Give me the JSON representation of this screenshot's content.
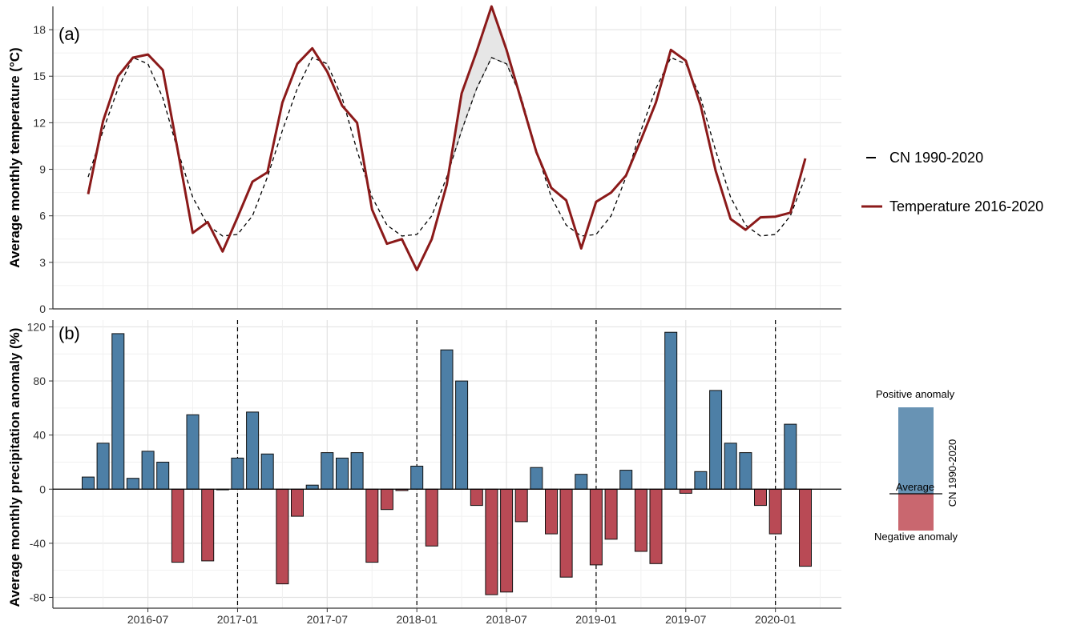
{
  "chart_data": [
    {
      "panel_label": "(a)",
      "type": "line",
      "ylabel": "Average monthly temperature (°C)",
      "ylim": [
        0,
        19.5
      ],
      "yticks": [
        0,
        3,
        6,
        9,
        12,
        15,
        18
      ],
      "xticks": [
        "2016-07",
        "2017-01",
        "2017-07",
        "2018-01",
        "2018-07",
        "2019-01",
        "2019-07",
        "2020-01"
      ],
      "x": [
        "2016-03",
        "2016-04",
        "2016-05",
        "2016-06",
        "2016-07",
        "2016-08",
        "2016-09",
        "2016-10",
        "2016-11",
        "2016-12",
        "2017-01",
        "2017-02",
        "2017-03",
        "2017-04",
        "2017-05",
        "2017-06",
        "2017-07",
        "2017-08",
        "2017-09",
        "2017-10",
        "2017-11",
        "2017-12",
        "2018-01",
        "2018-02",
        "2018-03",
        "2018-04",
        "2018-05",
        "2018-06",
        "2018-07",
        "2018-08",
        "2018-09",
        "2018-10",
        "2018-11",
        "2018-12",
        "2019-01",
        "2019-02",
        "2019-03",
        "2019-04",
        "2019-05",
        "2019-06",
        "2019-07",
        "2019-08",
        "2019-09",
        "2019-10",
        "2019-11",
        "2019-12",
        "2020-01",
        "2020-02",
        "2020-03"
      ],
      "grid": true,
      "series": [
        {
          "name": "CN 1990-2020",
          "style": "dashed",
          "color": "#000000",
          "values": [
            8.5,
            11.5,
            14.2,
            16.2,
            15.8,
            13.6,
            10.2,
            7.2,
            5.4,
            4.7,
            4.8,
            6.0,
            8.5,
            11.5,
            14.2,
            16.2,
            15.8,
            13.6,
            10.2,
            7.2,
            5.4,
            4.7,
            4.8,
            6.0,
            8.5,
            11.5,
            14.2,
            16.2,
            15.8,
            13.6,
            10.2,
            7.2,
            5.4,
            4.7,
            4.8,
            6.0,
            8.5,
            11.5,
            14.2,
            16.2,
            15.8,
            13.6,
            10.2,
            7.2,
            5.4,
            4.7,
            4.8,
            6.0,
            8.5
          ]
        },
        {
          "name": "Temperature 2016-2020",
          "style": "solid",
          "color": "#8b1a1a",
          "values": [
            7.4,
            12.1,
            15.0,
            16.2,
            16.4,
            15.4,
            10.2,
            4.9,
            5.6,
            3.7,
            5.9,
            8.2,
            8.8,
            13.3,
            15.8,
            16.8,
            15.3,
            13.1,
            12.0,
            6.4,
            4.2,
            4.5,
            2.5,
            4.5,
            8.0,
            13.9,
            16.6,
            19.5,
            16.7,
            13.4,
            10.1,
            7.8,
            7.0,
            3.9,
            6.9,
            7.5,
            8.6,
            10.9,
            13.3,
            16.7,
            16.0,
            13.1,
            8.9,
            5.8,
            5.1,
            5.9,
            5.95,
            6.2,
            9.7
          ]
        }
      ]
    },
    {
      "panel_label": "(b)",
      "type": "bar",
      "ylabel": "Average monthly precipitation anomaly (%)",
      "ylim": [
        -88,
        125
      ],
      "yticks": [
        -80,
        -40,
        0,
        40,
        80,
        120
      ],
      "xticks": [
        "2016-07",
        "2017-01",
        "2017-07",
        "2018-01",
        "2018-07",
        "2019-01",
        "2019-07",
        "2020-01"
      ],
      "year_separators": [
        "2017-01",
        "2018-01",
        "2019-01",
        "2020-01"
      ],
      "positive_color": "#4d7fa6",
      "negative_color": "#b94a55",
      "grid": true,
      "x": [
        "2016-03",
        "2016-04",
        "2016-05",
        "2016-06",
        "2016-07",
        "2016-08",
        "2016-09",
        "2016-10",
        "2016-11",
        "2016-12",
        "2017-01",
        "2017-02",
        "2017-03",
        "2017-04",
        "2017-05",
        "2017-06",
        "2017-07",
        "2017-08",
        "2017-09",
        "2017-10",
        "2017-11",
        "2017-12",
        "2018-01",
        "2018-02",
        "2018-03",
        "2018-04",
        "2018-05",
        "2018-06",
        "2018-07",
        "2018-08",
        "2018-09",
        "2018-10",
        "2018-11",
        "2018-12",
        "2019-01",
        "2019-02",
        "2019-03",
        "2019-04",
        "2019-05",
        "2019-06",
        "2019-07",
        "2019-08",
        "2019-09",
        "2019-10",
        "2019-11",
        "2019-12",
        "2020-01",
        "2020-02",
        "2020-03"
      ],
      "values": [
        9,
        34,
        115,
        8,
        28,
        20,
        -54,
        55,
        -53,
        0,
        23,
        57,
        26,
        -70,
        -20,
        3,
        27,
        23,
        27,
        -54,
        -15,
        -1,
        17,
        -42,
        103,
        80,
        -12,
        -78,
        -76,
        -24,
        16,
        -33,
        -65,
        11,
        -56,
        -37,
        14,
        -46,
        -55,
        116,
        -3,
        13,
        73,
        34,
        27,
        -12,
        -33,
        48,
        -57
      ]
    }
  ],
  "legend_lines": {
    "cn_label": "CN 1990-2020",
    "temp_label": "Temperature 2016-2020"
  },
  "legend_anomaly": {
    "positive_label": "Positive anomaly",
    "average_label": "Average",
    "negative_label": "Negative anomaly",
    "side_label": "CN 1990-2020"
  }
}
